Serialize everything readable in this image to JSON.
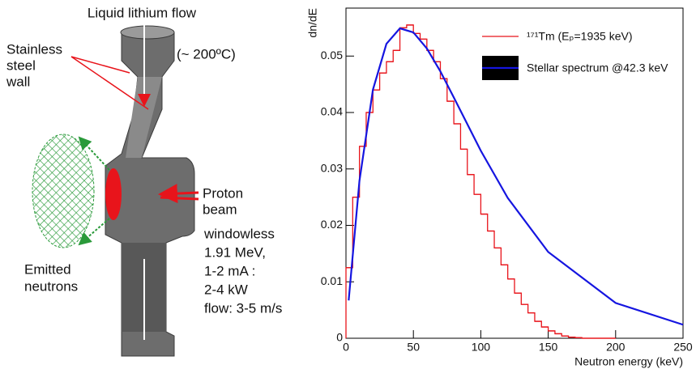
{
  "diagram": {
    "flow_label": "Liquid lithium flow",
    "wall_label": [
      "Stainless",
      "steel",
      "wall"
    ],
    "temperature": "(~ 200ºC)",
    "beam_label": [
      "Proton",
      "beam"
    ],
    "beam_specs": [
      "windowless",
      "1.91 MeV,",
      "1-2 mA :",
      "2-4 kW",
      "flow: 3-5 m/s"
    ],
    "neutron_label": [
      "Emitted",
      "neutrons"
    ]
  },
  "chart_data": {
    "type": "histogram",
    "y_label": "dn/dE",
    "x_label": "Neutron energy (keV)",
    "xlim": [
      0,
      250
    ],
    "ylim": [
      0,
      0.0585
    ],
    "xticks": [
      0,
      50,
      100,
      150,
      200,
      250
    ],
    "yticks": [
      0,
      0.01,
      0.02,
      0.03,
      0.04,
      0.05
    ],
    "bins": [
      0,
      5,
      10,
      15,
      20,
      25,
      30,
      35,
      40,
      45,
      50,
      55,
      60,
      65,
      70,
      75,
      80,
      85,
      90,
      95,
      100,
      105,
      110,
      115,
      120,
      125,
      130,
      135,
      140,
      145,
      150,
      155,
      160,
      165,
      170,
      175,
      180,
      185,
      190,
      195,
      200
    ],
    "series": [
      {
        "name": "¹⁷¹Tm (Eₚ=1935 keV)",
        "color": "#e8141b",
        "values": [
          0.0125,
          0.025,
          0.034,
          0.04,
          0.044,
          0.047,
          0.049,
          0.051,
          0.055,
          0.0555,
          0.054,
          0.053,
          0.051,
          0.049,
          0.046,
          0.042,
          0.038,
          0.0335,
          0.029,
          0.0255,
          0.022,
          0.019,
          0.016,
          0.013,
          0.0105,
          0.008,
          0.006,
          0.0045,
          0.003,
          0.002,
          0.0013,
          0.0008,
          0.0004,
          0.0002,
          0.0001,
          0,
          0,
          0,
          0,
          0
        ]
      },
      {
        "name": "Stellar spectrum @42.3 keV",
        "color": "#1515e0",
        "x": [
          2,
          10,
          20,
          30,
          40,
          50,
          60,
          70,
          80,
          100,
          120,
          150,
          200,
          250
        ],
        "values": [
          0.0067,
          0.0279,
          0.04405,
          0.05217,
          0.05491,
          0.05419,
          0.05134,
          0.04729,
          0.04266,
          0.03323,
          0.02486,
          0.01529,
          0.00625,
          0.0024
        ]
      }
    ]
  }
}
